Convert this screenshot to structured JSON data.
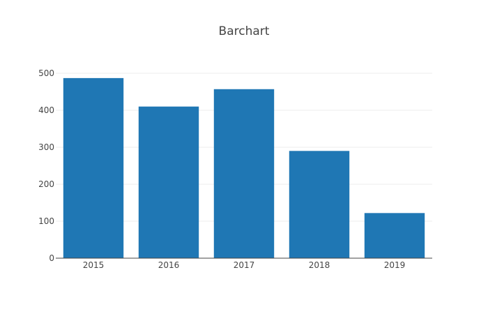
{
  "chart_data": {
    "type": "bar",
    "title": "Barchart",
    "categories": [
      "2015",
      "2016",
      "2017",
      "2018",
      "2019"
    ],
    "values": [
      487,
      410,
      457,
      290,
      122
    ],
    "xlabel": "",
    "ylabel": "",
    "ylim": [
      0,
      500
    ],
    "y_ticks": [
      "0",
      "100",
      "200",
      "300",
      "400",
      "500"
    ],
    "grid": true,
    "legend": "none",
    "colors": {
      "bar": "#1f77b4",
      "grid": "#eeeeee",
      "axis": "#444444",
      "text": "#444444"
    }
  }
}
